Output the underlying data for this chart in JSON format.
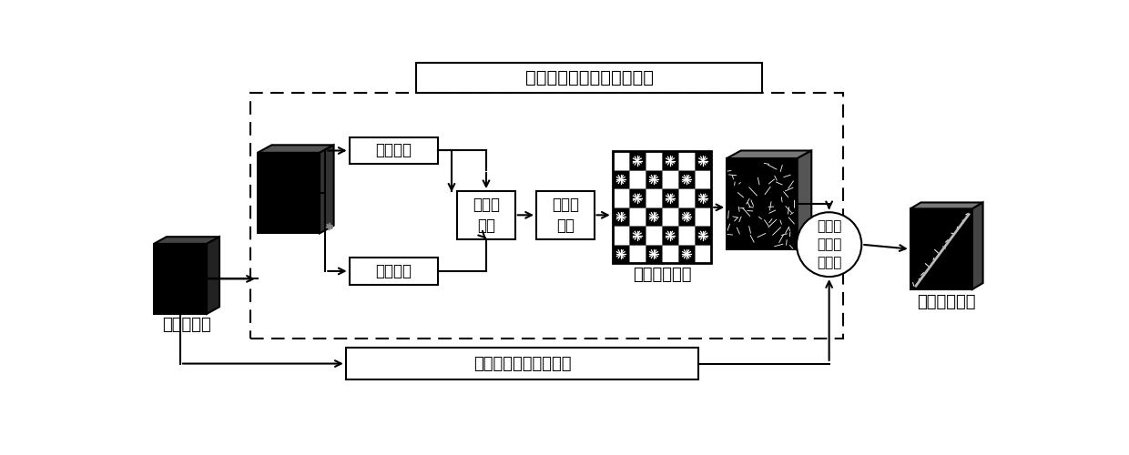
{
  "title": "基于区域生长的超像素分割",
  "bottom_box_label": "基于像素的高光谱分类",
  "label_spectral": "光谱信息",
  "label_spatial": "空间信息",
  "label_similarity": "相似性\n距离",
  "label_distmap": "距离映\n射图",
  "label_texture": "纹理自\n适应融\n合策略",
  "label_fastgrow": "快速区域生长",
  "label_final": "最终分类结果",
  "label_hsi": "高光谱图像",
  "bg_color": "#ffffff",
  "line_color": "#000000",
  "font_size_main": 13,
  "font_size_box": 12,
  "font_size_small": 10
}
